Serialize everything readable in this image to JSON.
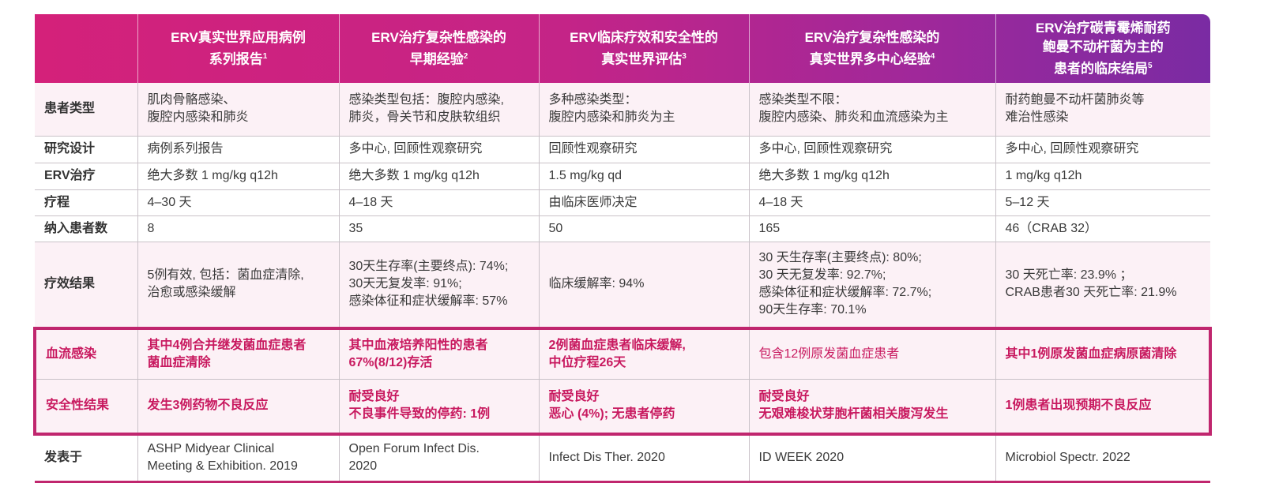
{
  "headers": [
    {
      "text": "",
      "sup": ""
    },
    {
      "lines": [
        "ERV真实世界应用病例",
        "系列报告"
      ],
      "sup": "1"
    },
    {
      "lines": [
        "ERV治疗复杂性感染的",
        "早期经验"
      ],
      "sup": "2"
    },
    {
      "lines": [
        "ERV临床疗效和安全性的",
        "真实世界评估"
      ],
      "sup": "3"
    },
    {
      "lines": [
        "ERV治疗复杂性感染的",
        "真实世界多中心经验"
      ],
      "sup": "4"
    },
    {
      "lines": [
        "ERV治疗碳青霉烯耐药",
        "鲍曼不动杆菌为主的",
        "患者的临床结局"
      ],
      "sup": "5"
    }
  ],
  "rows": [
    {
      "label": "患者类型",
      "cells": [
        [
          "肌肉骨骼感染、",
          "腹腔内感染和肺炎"
        ],
        [
          "感染类型包括：腹腔内感染,",
          "肺炎，骨关节和皮肤软组织"
        ],
        [
          "多种感染类型：",
          "腹腔内感染和肺炎为主"
        ],
        [
          "感染类型不限：",
          "腹腔内感染、肺炎和血流感染为主"
        ],
        [
          "耐药鲍曼不动杆菌肺炎等",
          "难治性感染"
        ]
      ]
    },
    {
      "label": "研究设计",
      "cells": [
        [
          "病例系列报告"
        ],
        [
          "多中心, 回顾性观察研究"
        ],
        [
          "回顾性观察研究"
        ],
        [
          "多中心, 回顾性观察研究"
        ],
        [
          "多中心, 回顾性观察研究"
        ]
      ]
    },
    {
      "label": "ERV治疗",
      "cells": [
        [
          "绝大多数 1 mg/kg q12h"
        ],
        [
          "绝大多数 1 mg/kg q12h"
        ],
        [
          "1.5 mg/kg qd"
        ],
        [
          "绝大多数 1 mg/kg q12h"
        ],
        [
          "1 mg/kg q12h"
        ]
      ]
    },
    {
      "label": "疗程",
      "cells": [
        [
          "4–30 天"
        ],
        [
          "4–18 天"
        ],
        [
          "由临床医师决定"
        ],
        [
          "4–18 天"
        ],
        [
          "5–12 天"
        ]
      ]
    },
    {
      "label": "纳入患者数",
      "cells": [
        [
          "8"
        ],
        [
          "35"
        ],
        [
          "50"
        ],
        [
          "165"
        ],
        [
          "46（CRAB 32）"
        ]
      ]
    },
    {
      "label": "疗效结果",
      "cells": [
        [
          "5例有效, 包括：菌血症清除,",
          "治愈或感染缓解"
        ],
        [
          "30天生存率(主要终点): 74%;",
          "30天无复发率: 91%;",
          "感染体征和症状缓解率: 57%"
        ],
        [
          "临床缓解率: 94%"
        ],
        [
          "30 天生存率(主要终点): 80%;",
          "30 天无复发率: 92.7%;",
          "感染体征和症状缓解率: 72.7%;",
          "90天生存率: 70.1%"
        ],
        [
          "30 天死亡率: 23.9% ；",
          "CRAB患者30 天死亡率: 21.9%"
        ]
      ]
    },
    {
      "label": "血流感染",
      "cells": [
        [
          "其中4例合并继发菌血症患者",
          "菌血症清除"
        ],
        [
          "其中血液培养阳性的患者",
          "67%(8/12)存活"
        ],
        [
          "2例菌血症患者临床缓解,",
          "中位疗程26天"
        ],
        [
          "包含12例原发菌血症患者"
        ],
        [
          "其中1例原发菌血症病原菌清除"
        ]
      ]
    },
    {
      "label": "安全性结果",
      "cells": [
        [
          "发生3例药物不良反应"
        ],
        [
          "耐受良好",
          "不良事件导致的停药: 1例"
        ],
        [
          "耐受良好",
          "恶心 (4%); 无患者停药"
        ],
        [
          "耐受良好",
          "无艰难梭状芽胞杆菌相关腹泻发生"
        ],
        [
          "1例患者出现预期不良反应"
        ]
      ]
    },
    {
      "label": "发表于",
      "cells": [
        [
          "ASHP Midyear Clinical",
          "Meeting & Exhibition. 2019"
        ],
        [
          "Open Forum Infect Dis.",
          "2020"
        ],
        [
          "Infect Dis Ther. 2020"
        ],
        [
          "ID WEEK 2020"
        ],
        [
          "Microbiol Spectr. 2022"
        ]
      ]
    }
  ],
  "colors": {
    "accent": "#c8195f",
    "header_start": "#d4217a",
    "header_end": "#7a2ba3",
    "row_tint": "#fcf1f6"
  }
}
